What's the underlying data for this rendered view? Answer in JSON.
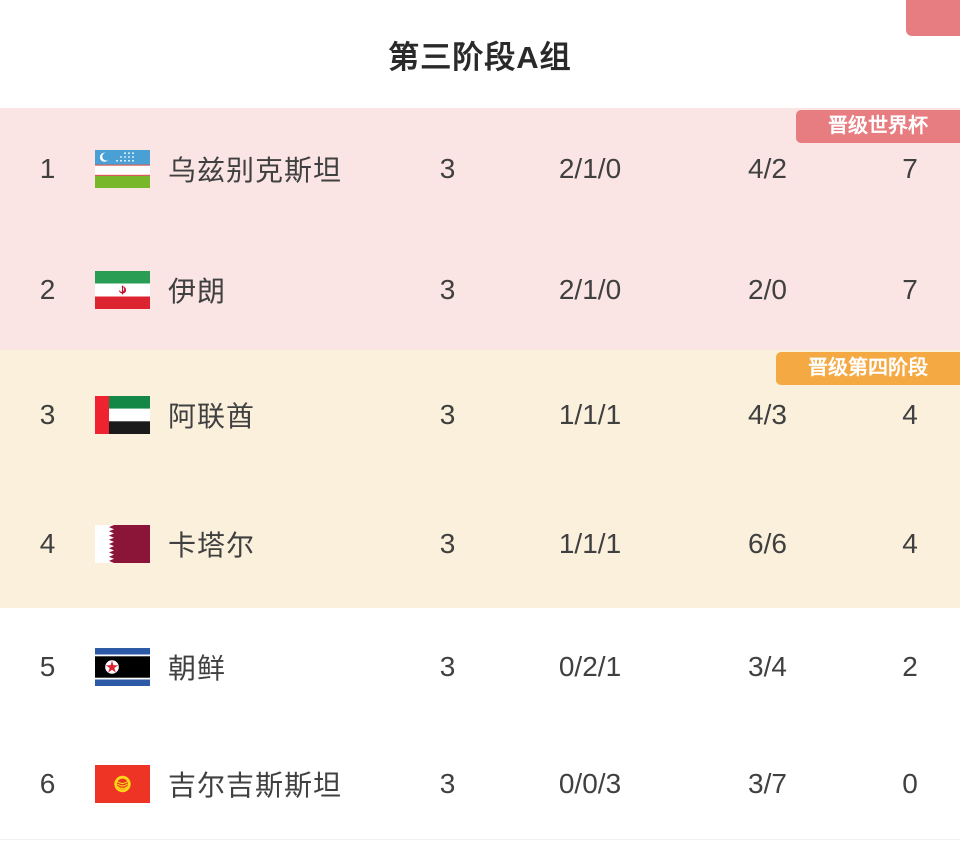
{
  "page": {
    "title": "第三阶段A组"
  },
  "colors": {
    "world_cup_zone_bg": "#fae4e4",
    "fourth_stage_zone_bg": "#faf0dc",
    "unqualified_zone_bg": "#ffffff",
    "world_cup_badge_bg": "#e77d81",
    "fourth_stage_badge_bg": "#f5a943",
    "badge_text": "#ffffff",
    "row_text": "#404040",
    "title_text": "#2a2a2a"
  },
  "badges": {
    "world_cup_label": "晋级世界杯",
    "fourth_stage_label": "晋级第四阶段"
  },
  "standings": [
    {
      "rank": "1",
      "team": "乌兹别克斯坦",
      "flag": "uzbekistan-flag-icon",
      "played": "3",
      "wdl": "2/1/0",
      "goals": "4/2",
      "points": "7",
      "section": "world_cup"
    },
    {
      "rank": "2",
      "team": "伊朗",
      "flag": "iran-flag-icon",
      "played": "3",
      "wdl": "2/1/0",
      "goals": "2/0",
      "points": "7",
      "section": "world_cup"
    },
    {
      "rank": "3",
      "team": "阿联酋",
      "flag": "uae-flag-icon",
      "played": "3",
      "wdl": "1/1/1",
      "goals": "4/3",
      "points": "4",
      "section": "fourth_stage"
    },
    {
      "rank": "4",
      "team": "卡塔尔",
      "flag": "qatar-flag-icon",
      "played": "3",
      "wdl": "1/1/1",
      "goals": "6/6",
      "points": "4",
      "section": "fourth_stage"
    },
    {
      "rank": "5",
      "team": "朝鲜",
      "flag": "north-korea-flag-icon",
      "played": "3",
      "wdl": "0/2/1",
      "goals": "3/4",
      "points": "2",
      "section": "none"
    },
    {
      "rank": "6",
      "team": "吉尔吉斯斯坦",
      "flag": "kyrgyzstan-flag-icon",
      "played": "3",
      "wdl": "0/0/3",
      "goals": "3/7",
      "points": "0",
      "section": "none"
    }
  ]
}
